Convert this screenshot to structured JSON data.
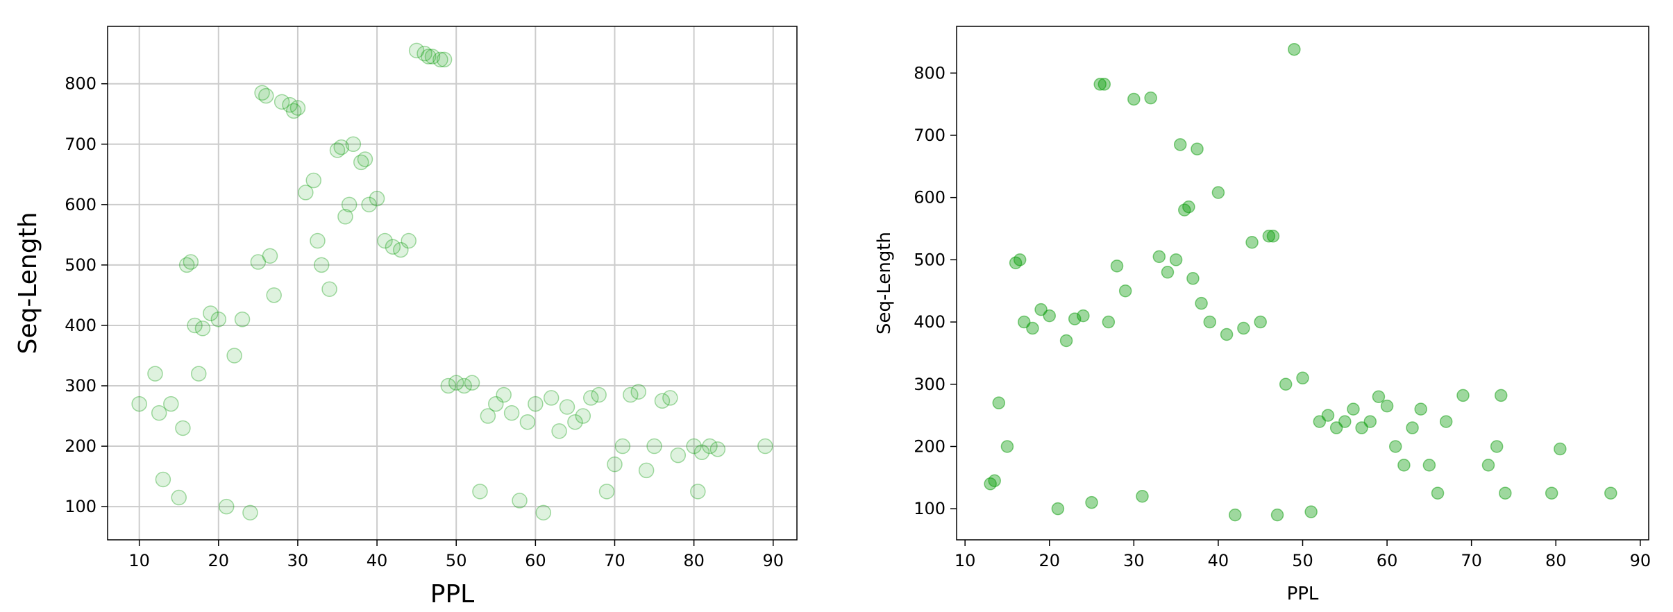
{
  "chart_data": [
    {
      "type": "scatter",
      "title": "",
      "xlabel": "PPL",
      "ylabel": "Seq-Length",
      "xlim": [
        6,
        93
      ],
      "ylim": [
        45,
        895
      ],
      "xticks": [
        10,
        20,
        30,
        40,
        50,
        60,
        70,
        80,
        90
      ],
      "yticks": [
        100,
        200,
        300,
        400,
        500,
        600,
        700,
        800
      ],
      "grid": true,
      "color": "#009900",
      "point_opacity": 0.13,
      "series": [
        {
          "values": [
            [
              10,
              270
            ],
            [
              12,
              320
            ],
            [
              12.5,
              255
            ],
            [
              13,
              145
            ],
            [
              14,
              270
            ],
            [
              15,
              115
            ],
            [
              15.5,
              230
            ],
            [
              16,
              500
            ],
            [
              16.5,
              505
            ],
            [
              17,
              400
            ],
            [
              17.5,
              320
            ],
            [
              18,
              395
            ],
            [
              19,
              420
            ],
            [
              20,
              410
            ],
            [
              21,
              100
            ],
            [
              22,
              350
            ],
            [
              23,
              410
            ],
            [
              24,
              90
            ],
            [
              25,
              505
            ],
            [
              25.5,
              785
            ],
            [
              26,
              780
            ],
            [
              26.5,
              515
            ],
            [
              27,
              450
            ],
            [
              28,
              770
            ],
            [
              29,
              765
            ],
            [
              29.5,
              755
            ],
            [
              30,
              760
            ],
            [
              31,
              620
            ],
            [
              32,
              640
            ],
            [
              32.5,
              540
            ],
            [
              33,
              500
            ],
            [
              34,
              460
            ],
            [
              35,
              690
            ],
            [
              35.5,
              695
            ],
            [
              36,
              580
            ],
            [
              36.5,
              600
            ],
            [
              37,
              700
            ],
            [
              38,
              670
            ],
            [
              38.5,
              675
            ],
            [
              39,
              600
            ],
            [
              40,
              610
            ],
            [
              41,
              540
            ],
            [
              42,
              530
            ],
            [
              43,
              525
            ],
            [
              44,
              540
            ],
            [
              45,
              855
            ],
            [
              46,
              850
            ],
            [
              46.5,
              845
            ],
            [
              47,
              845
            ],
            [
              48,
              840
            ],
            [
              48.5,
              840
            ],
            [
              49,
              300
            ],
            [
              50,
              305
            ],
            [
              51,
              300
            ],
            [
              52,
              305
            ],
            [
              53,
              125
            ],
            [
              54,
              250
            ],
            [
              55,
              270
            ],
            [
              56,
              285
            ],
            [
              57,
              255
            ],
            [
              58,
              110
            ],
            [
              59,
              240
            ],
            [
              60,
              270
            ],
            [
              61,
              90
            ],
            [
              62,
              280
            ],
            [
              63,
              225
            ],
            [
              64,
              265
            ],
            [
              65,
              240
            ],
            [
              66,
              250
            ],
            [
              67,
              280
            ],
            [
              68,
              285
            ],
            [
              69,
              125
            ],
            [
              70,
              170
            ],
            [
              71,
              200
            ],
            [
              72,
              285
            ],
            [
              73,
              290
            ],
            [
              74,
              160
            ],
            [
              75,
              200
            ],
            [
              76,
              275
            ],
            [
              77,
              280
            ],
            [
              78,
              185
            ],
            [
              80,
              200
            ],
            [
              80.5,
              125
            ],
            [
              81,
              190
            ],
            [
              82,
              200
            ],
            [
              83,
              195
            ],
            [
              89,
              200
            ]
          ]
        }
      ]
    },
    {
      "type": "scatter",
      "title": "",
      "xlabel": "PPL",
      "ylabel": "Seq-Length",
      "xlim": [
        9,
        91
      ],
      "ylim": [
        50,
        875
      ],
      "xticks": [
        10,
        20,
        30,
        40,
        50,
        60,
        70,
        80,
        90
      ],
      "yticks": [
        100,
        200,
        300,
        400,
        500,
        600,
        700,
        800
      ],
      "grid": false,
      "color": "#009900",
      "point_opacity": 0.38,
      "series": [
        {
          "values": [
            [
              13,
              140
            ],
            [
              13.5,
              145
            ],
            [
              14,
              270
            ],
            [
              15,
              200
            ],
            [
              16,
              495
            ],
            [
              16.5,
              500
            ],
            [
              17,
              400
            ],
            [
              18,
              390
            ],
            [
              19,
              420
            ],
            [
              20,
              410
            ],
            [
              21,
              100
            ],
            [
              22,
              370
            ],
            [
              23,
              405
            ],
            [
              24,
              410
            ],
            [
              25,
              110
            ],
            [
              26,
              782
            ],
            [
              26.5,
              782
            ],
            [
              27,
              400
            ],
            [
              28,
              490
            ],
            [
              29,
              450
            ],
            [
              30,
              758
            ],
            [
              31,
              120
            ],
            [
              32,
              760
            ],
            [
              33,
              505
            ],
            [
              34,
              480
            ],
            [
              35,
              500
            ],
            [
              35.5,
              685
            ],
            [
              36,
              580
            ],
            [
              36.5,
              585
            ],
            [
              37,
              470
            ],
            [
              37.5,
              678
            ],
            [
              38,
              430
            ],
            [
              39,
              400
            ],
            [
              40,
              608
            ],
            [
              41,
              380
            ],
            [
              42,
              90
            ],
            [
              43,
              390
            ],
            [
              44,
              528
            ],
            [
              45,
              400
            ],
            [
              46,
              538
            ],
            [
              46.5,
              538
            ],
            [
              47,
              90
            ],
            [
              48,
              300
            ],
            [
              49,
              838
            ],
            [
              50,
              310
            ],
            [
              51,
              95
            ],
            [
              52,
              240
            ],
            [
              53,
              250
            ],
            [
              54,
              230
            ],
            [
              55,
              240
            ],
            [
              56,
              260
            ],
            [
              57,
              230
            ],
            [
              58,
              240
            ],
            [
              59,
              280
            ],
            [
              60,
              265
            ],
            [
              61,
              200
            ],
            [
              62,
              170
            ],
            [
              63,
              230
            ],
            [
              64,
              260
            ],
            [
              65,
              170
            ],
            [
              66,
              125
            ],
            [
              67,
              240
            ],
            [
              69,
              282
            ],
            [
              72,
              170
            ],
            [
              73,
              200
            ],
            [
              73.5,
              282
            ],
            [
              74,
              125
            ],
            [
              79.5,
              125
            ],
            [
              80.5,
              196
            ],
            [
              86.5,
              125
            ]
          ]
        }
      ]
    }
  ]
}
